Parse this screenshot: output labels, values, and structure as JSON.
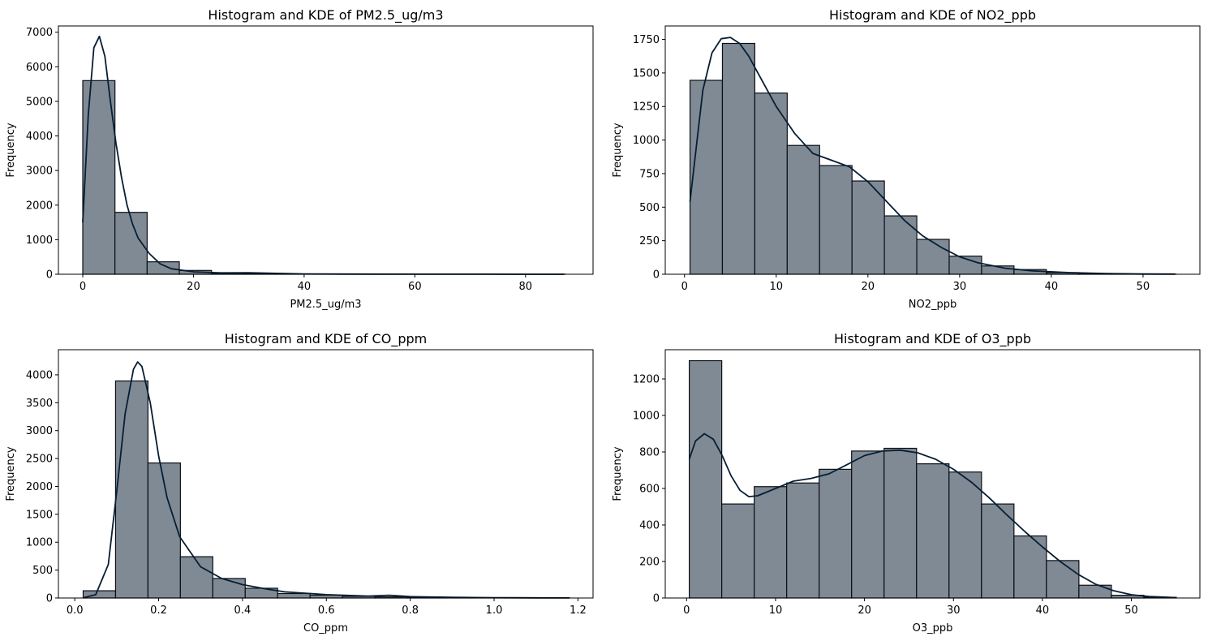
{
  "chart_data": [
    {
      "type": "bar",
      "title": "Histogram and KDE of PM2.5_ug/m3",
      "xlabel": "PM2.5_ug/m3",
      "ylabel": "Frequency",
      "xlim": [
        -4.4,
        92.2
      ],
      "ylim": [
        0,
        7180
      ],
      "xticks": [
        0,
        20,
        40,
        60,
        80
      ],
      "yticks": [
        0,
        1000,
        2000,
        3000,
        4000,
        5000,
        6000,
        7000
      ],
      "bins": {
        "start": 0,
        "width": 5.815,
        "counts": [
          5600,
          1790,
          360,
          110,
          30,
          15,
          8,
          5,
          4,
          3,
          2,
          2,
          2,
          1,
          1
        ]
      },
      "kde": {
        "x": [
          0,
          1,
          2,
          3,
          4,
          5,
          6,
          7,
          8,
          9,
          10,
          12,
          14,
          16,
          20,
          25,
          30,
          40,
          50,
          60,
          70,
          80,
          87
        ],
        "y": [
          1500,
          4600,
          6550,
          6880,
          6300,
          5000,
          3800,
          2800,
          2000,
          1450,
          1050,
          600,
          300,
          160,
          70,
          40,
          45,
          10,
          5,
          3,
          2,
          1,
          0
        ]
      },
      "grid": false
    },
    {
      "type": "bar",
      "title": "Histogram and KDE of NO2_ppb",
      "xlabel": "NO2_ppb",
      "ylabel": "Frequency",
      "xlim": [
        -2.1,
        56.2
      ],
      "ylim": [
        0,
        1850
      ],
      "xticks": [
        0,
        10,
        20,
        30,
        40,
        50
      ],
      "yticks": [
        0,
        250,
        500,
        750,
        1000,
        1250,
        1500,
        1750
      ],
      "bins": {
        "start": 0.6,
        "width": 3.533,
        "counts": [
          1445,
          1720,
          1350,
          960,
          810,
          695,
          435,
          260,
          135,
          62,
          35,
          12,
          5,
          2,
          1
        ]
      },
      "kde": {
        "x": [
          0.6,
          2,
          3,
          4,
          5,
          6,
          7,
          8,
          10,
          12,
          14,
          16,
          18,
          20,
          22,
          24,
          26,
          28,
          30,
          32,
          35,
          38,
          42,
          46,
          50,
          53.5
        ],
        "y": [
          540,
          1370,
          1650,
          1755,
          1765,
          1720,
          1625,
          1500,
          1250,
          1050,
          900,
          850,
          800,
          690,
          545,
          400,
          285,
          200,
          130,
          85,
          45,
          25,
          12,
          5,
          2,
          1
        ]
      },
      "grid": false
    },
    {
      "type": "bar",
      "title": "Histogram and KDE of CO_ppm",
      "xlabel": "CO_ppm",
      "ylabel": "Frequency",
      "xlim": [
        -0.039,
        1.236
      ],
      "ylim": [
        0,
        4450
      ],
      "xticks": [
        0.0,
        0.2,
        0.4,
        0.6,
        0.8,
        1.0,
        1.2
      ],
      "xtick_labels": [
        "0.0",
        "0.2",
        "0.4",
        "0.6",
        "0.8",
        "1.0",
        "1.2"
      ],
      "yticks": [
        0,
        500,
        1000,
        1500,
        2000,
        2500,
        3000,
        3500,
        4000
      ],
      "bins": {
        "start": 0.02,
        "width": 0.0773,
        "counts": [
          130,
          3890,
          2420,
          740,
          350,
          175,
          80,
          50,
          30,
          20,
          12,
          8,
          5,
          3,
          2
        ]
      },
      "kde": {
        "x": [
          0.02,
          0.05,
          0.08,
          0.1,
          0.12,
          0.14,
          0.15,
          0.16,
          0.18,
          0.2,
          0.22,
          0.25,
          0.3,
          0.35,
          0.4,
          0.45,
          0.5,
          0.6,
          0.7,
          0.75,
          0.8,
          0.9,
          1.0,
          1.1,
          1.18
        ],
        "y": [
          5,
          60,
          600,
          1900,
          3300,
          4100,
          4230,
          4150,
          3500,
          2550,
          1800,
          1100,
          560,
          350,
          240,
          170,
          110,
          60,
          35,
          50,
          25,
          12,
          6,
          3,
          1
        ]
      },
      "grid": false
    },
    {
      "type": "bar",
      "title": "Histogram and KDE of O3_ppb",
      "xlabel": "O3_ppb",
      "ylabel": "Frequency",
      "xlim": [
        -2.4,
        57.7
      ],
      "ylim": [
        0,
        1360
      ],
      "xticks": [
        0,
        10,
        20,
        30,
        40,
        50
      ],
      "yticks": [
        0,
        200,
        400,
        600,
        800,
        1000,
        1200
      ],
      "bins": {
        "start": 0.3,
        "width": 3.65,
        "counts": [
          1300,
          515,
          610,
          630,
          705,
          805,
          820,
          735,
          690,
          515,
          340,
          205,
          70,
          15,
          4
        ]
      },
      "kde": {
        "x": [
          0.3,
          1,
          2,
          3,
          4,
          5,
          6,
          7,
          8,
          10,
          12,
          14,
          16,
          18,
          20,
          22,
          24,
          26,
          28,
          30,
          32,
          34,
          36,
          38,
          40,
          42,
          44,
          46,
          48,
          50,
          52,
          55
        ],
        "y": [
          760,
          860,
          900,
          870,
          780,
          670,
          590,
          555,
          560,
          600,
          640,
          655,
          680,
          730,
          780,
          805,
          810,
          795,
          760,
          705,
          635,
          550,
          455,
          365,
          280,
          200,
          130,
          75,
          40,
          18,
          8,
          2
        ]
      },
      "grid": false
    }
  ]
}
